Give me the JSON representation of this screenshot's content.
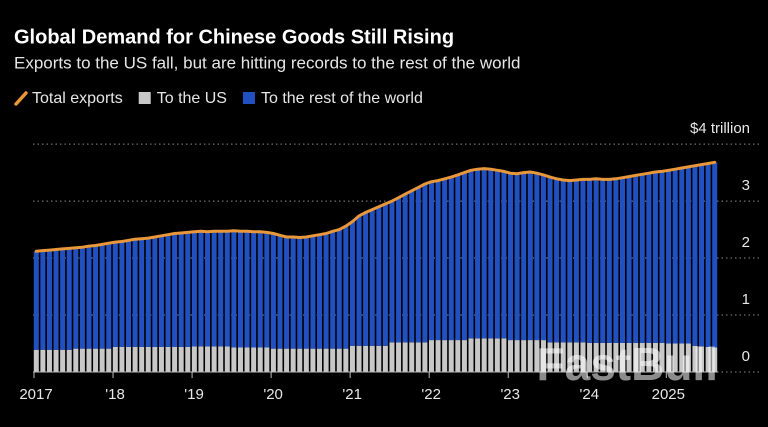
{
  "chart_data": {
    "type": "bar",
    "title": "Global Demand for Chinese Goods Still Rising",
    "subtitle": "Exports to the US fall, but are hitting records to the rest of the world",
    "watermark": "FastBull",
    "stacked": true,
    "grid": true,
    "categories": [
      "2017",
      null,
      null,
      null,
      null,
      null,
      null,
      null,
      null,
      null,
      null,
      null,
      "'18",
      null,
      null,
      null,
      null,
      null,
      null,
      null,
      null,
      null,
      null,
      null,
      "'19",
      null,
      null,
      null,
      null,
      null,
      null,
      null,
      null,
      null,
      null,
      null,
      "'20",
      null,
      null,
      null,
      null,
      null,
      null,
      null,
      null,
      null,
      null,
      null,
      "'21",
      null,
      null,
      null,
      null,
      null,
      null,
      null,
      null,
      null,
      null,
      null,
      "'22",
      null,
      null,
      null,
      null,
      null,
      null,
      null,
      null,
      null,
      null,
      null,
      "'23",
      null,
      null,
      null,
      null,
      null,
      null,
      null,
      null,
      null,
      null,
      null,
      "'24",
      null,
      null,
      null,
      null,
      null,
      null,
      null,
      null,
      null,
      null,
      null,
      "2025",
      null,
      null,
      null,
      null,
      null,
      null,
      null
    ],
    "series": [
      {
        "name": "Total exports",
        "type": "line",
        "color": "#e8973a",
        "values": [
          2.12,
          2.13,
          2.14,
          2.15,
          2.16,
          2.17,
          2.18,
          2.19,
          2.21,
          2.22,
          2.24,
          2.26,
          2.28,
          2.29,
          2.31,
          2.33,
          2.34,
          2.35,
          2.37,
          2.39,
          2.41,
          2.43,
          2.44,
          2.45,
          2.46,
          2.47,
          2.46,
          2.47,
          2.47,
          2.47,
          2.48,
          2.47,
          2.47,
          2.46,
          2.46,
          2.45,
          2.43,
          2.4,
          2.37,
          2.37,
          2.36,
          2.37,
          2.39,
          2.41,
          2.43,
          2.47,
          2.5,
          2.56,
          2.64,
          2.74,
          2.8,
          2.85,
          2.9,
          2.95,
          3.0,
          3.06,
          3.12,
          3.18,
          3.24,
          3.3,
          3.34,
          3.36,
          3.39,
          3.42,
          3.46,
          3.5,
          3.54,
          3.56,
          3.57,
          3.56,
          3.54,
          3.52,
          3.49,
          3.48,
          3.5,
          3.51,
          3.49,
          3.46,
          3.42,
          3.39,
          3.37,
          3.36,
          3.37,
          3.38,
          3.38,
          3.39,
          3.38,
          3.38,
          3.39,
          3.41,
          3.43,
          3.45,
          3.47,
          3.49,
          3.51,
          3.52,
          3.54,
          3.56,
          3.58,
          3.6,
          3.62,
          3.64,
          3.66,
          3.68
        ]
      },
      {
        "name": "To the US",
        "type": "bar",
        "color": "#c8c8c8",
        "values": [
          0.39,
          0.39,
          0.39,
          0.39,
          0.39,
          0.39,
          0.41,
          0.41,
          0.41,
          0.41,
          0.41,
          0.41,
          0.44,
          0.44,
          0.44,
          0.44,
          0.44,
          0.44,
          0.44,
          0.44,
          0.44,
          0.44,
          0.44,
          0.44,
          0.45,
          0.45,
          0.45,
          0.45,
          0.45,
          0.45,
          0.43,
          0.43,
          0.43,
          0.43,
          0.43,
          0.43,
          0.41,
          0.41,
          0.41,
          0.41,
          0.41,
          0.41,
          0.41,
          0.41,
          0.41,
          0.41,
          0.41,
          0.41,
          0.46,
          0.46,
          0.46,
          0.46,
          0.46,
          0.46,
          0.52,
          0.52,
          0.52,
          0.52,
          0.52,
          0.52,
          0.56,
          0.56,
          0.56,
          0.56,
          0.56,
          0.56,
          0.59,
          0.59,
          0.59,
          0.59,
          0.59,
          0.59,
          0.56,
          0.56,
          0.56,
          0.56,
          0.56,
          0.56,
          0.52,
          0.52,
          0.52,
          0.52,
          0.52,
          0.52,
          0.51,
          0.51,
          0.51,
          0.51,
          0.51,
          0.51,
          0.51,
          0.51,
          0.51,
          0.51,
          0.51,
          0.51,
          0.5,
          0.5,
          0.5,
          0.5,
          0.46,
          0.45,
          0.44,
          0.43
        ]
      },
      {
        "name": "To the rest of the world",
        "type": "bar",
        "color": "#2150c0",
        "values": [
          1.73,
          1.74,
          1.75,
          1.76,
          1.77,
          1.78,
          1.77,
          1.78,
          1.8,
          1.81,
          1.83,
          1.85,
          1.84,
          1.85,
          1.87,
          1.89,
          1.9,
          1.91,
          1.93,
          1.95,
          1.97,
          1.99,
          2.0,
          2.01,
          2.01,
          2.02,
          2.01,
          2.02,
          2.02,
          2.02,
          2.05,
          2.04,
          2.04,
          2.03,
          2.03,
          2.02,
          2.02,
          1.99,
          1.96,
          1.96,
          1.95,
          1.96,
          1.98,
          2.0,
          2.02,
          2.06,
          2.09,
          2.15,
          2.18,
          2.28,
          2.34,
          2.39,
          2.44,
          2.49,
          2.48,
          2.54,
          2.6,
          2.66,
          2.72,
          2.78,
          2.78,
          2.8,
          2.83,
          2.86,
          2.9,
          2.94,
          2.95,
          2.97,
          2.98,
          2.97,
          2.95,
          2.93,
          2.93,
          2.92,
          2.94,
          2.95,
          2.93,
          2.9,
          2.9,
          2.87,
          2.85,
          2.84,
          2.85,
          2.86,
          2.87,
          2.88,
          2.87,
          2.87,
          2.88,
          2.9,
          2.92,
          2.94,
          2.96,
          2.98,
          3.0,
          3.01,
          3.04,
          3.06,
          3.08,
          3.1,
          3.16,
          3.19,
          3.22,
          3.25
        ]
      }
    ],
    "ylim": [
      0,
      4.3
    ],
    "yticks": [
      0,
      1,
      2,
      3,
      {
        "value": 4,
        "label": "$4 trillion"
      }
    ]
  }
}
